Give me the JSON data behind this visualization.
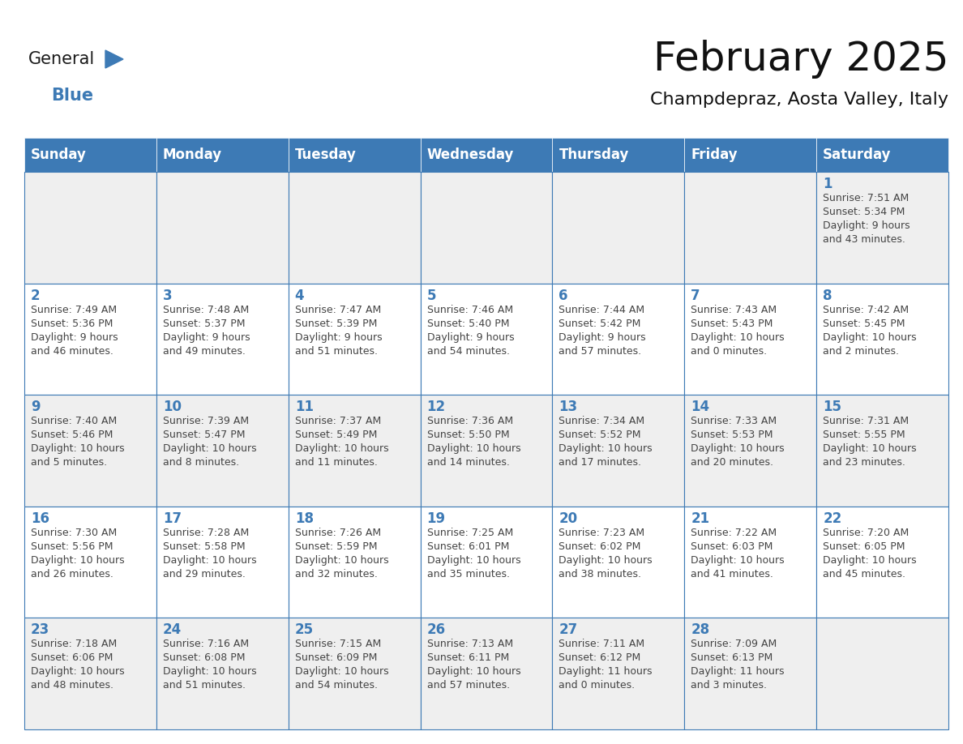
{
  "title": "February 2025",
  "subtitle": "Champdepraz, Aosta Valley, Italy",
  "header_color": "#3d7ab5",
  "header_text_color": "#ffffff",
  "grid_line_color": "#3d7ab5",
  "day_names": [
    "Sunday",
    "Monday",
    "Tuesday",
    "Wednesday",
    "Thursday",
    "Friday",
    "Saturday"
  ],
  "bg_color": "#ffffff",
  "cell_bg_even": "#efefef",
  "cell_bg_odd": "#ffffff",
  "day_num_color": "#3d7ab5",
  "text_color": "#444444",
  "logo_general_color": "#1a1a1a",
  "logo_blue_color": "#3d7ab5",
  "weeks": [
    [
      {
        "day": null,
        "sunrise": null,
        "sunset": null,
        "daylight": null
      },
      {
        "day": null,
        "sunrise": null,
        "sunset": null,
        "daylight": null
      },
      {
        "day": null,
        "sunrise": null,
        "sunset": null,
        "daylight": null
      },
      {
        "day": null,
        "sunrise": null,
        "sunset": null,
        "daylight": null
      },
      {
        "day": null,
        "sunrise": null,
        "sunset": null,
        "daylight": null
      },
      {
        "day": null,
        "sunrise": null,
        "sunset": null,
        "daylight": null
      },
      {
        "day": 1,
        "sunrise": "7:51 AM",
        "sunset": "5:34 PM",
        "daylight": "9 hours\nand 43 minutes."
      }
    ],
    [
      {
        "day": 2,
        "sunrise": "7:49 AM",
        "sunset": "5:36 PM",
        "daylight": "9 hours\nand 46 minutes."
      },
      {
        "day": 3,
        "sunrise": "7:48 AM",
        "sunset": "5:37 PM",
        "daylight": "9 hours\nand 49 minutes."
      },
      {
        "day": 4,
        "sunrise": "7:47 AM",
        "sunset": "5:39 PM",
        "daylight": "9 hours\nand 51 minutes."
      },
      {
        "day": 5,
        "sunrise": "7:46 AM",
        "sunset": "5:40 PM",
        "daylight": "9 hours\nand 54 minutes."
      },
      {
        "day": 6,
        "sunrise": "7:44 AM",
        "sunset": "5:42 PM",
        "daylight": "9 hours\nand 57 minutes."
      },
      {
        "day": 7,
        "sunrise": "7:43 AM",
        "sunset": "5:43 PM",
        "daylight": "10 hours\nand 0 minutes."
      },
      {
        "day": 8,
        "sunrise": "7:42 AM",
        "sunset": "5:45 PM",
        "daylight": "10 hours\nand 2 minutes."
      }
    ],
    [
      {
        "day": 9,
        "sunrise": "7:40 AM",
        "sunset": "5:46 PM",
        "daylight": "10 hours\nand 5 minutes."
      },
      {
        "day": 10,
        "sunrise": "7:39 AM",
        "sunset": "5:47 PM",
        "daylight": "10 hours\nand 8 minutes."
      },
      {
        "day": 11,
        "sunrise": "7:37 AM",
        "sunset": "5:49 PM",
        "daylight": "10 hours\nand 11 minutes."
      },
      {
        "day": 12,
        "sunrise": "7:36 AM",
        "sunset": "5:50 PM",
        "daylight": "10 hours\nand 14 minutes."
      },
      {
        "day": 13,
        "sunrise": "7:34 AM",
        "sunset": "5:52 PM",
        "daylight": "10 hours\nand 17 minutes."
      },
      {
        "day": 14,
        "sunrise": "7:33 AM",
        "sunset": "5:53 PM",
        "daylight": "10 hours\nand 20 minutes."
      },
      {
        "day": 15,
        "sunrise": "7:31 AM",
        "sunset": "5:55 PM",
        "daylight": "10 hours\nand 23 minutes."
      }
    ],
    [
      {
        "day": 16,
        "sunrise": "7:30 AM",
        "sunset": "5:56 PM",
        "daylight": "10 hours\nand 26 minutes."
      },
      {
        "day": 17,
        "sunrise": "7:28 AM",
        "sunset": "5:58 PM",
        "daylight": "10 hours\nand 29 minutes."
      },
      {
        "day": 18,
        "sunrise": "7:26 AM",
        "sunset": "5:59 PM",
        "daylight": "10 hours\nand 32 minutes."
      },
      {
        "day": 19,
        "sunrise": "7:25 AM",
        "sunset": "6:01 PM",
        "daylight": "10 hours\nand 35 minutes."
      },
      {
        "day": 20,
        "sunrise": "7:23 AM",
        "sunset": "6:02 PM",
        "daylight": "10 hours\nand 38 minutes."
      },
      {
        "day": 21,
        "sunrise": "7:22 AM",
        "sunset": "6:03 PM",
        "daylight": "10 hours\nand 41 minutes."
      },
      {
        "day": 22,
        "sunrise": "7:20 AM",
        "sunset": "6:05 PM",
        "daylight": "10 hours\nand 45 minutes."
      }
    ],
    [
      {
        "day": 23,
        "sunrise": "7:18 AM",
        "sunset": "6:06 PM",
        "daylight": "10 hours\nand 48 minutes."
      },
      {
        "day": 24,
        "sunrise": "7:16 AM",
        "sunset": "6:08 PM",
        "daylight": "10 hours\nand 51 minutes."
      },
      {
        "day": 25,
        "sunrise": "7:15 AM",
        "sunset": "6:09 PM",
        "daylight": "10 hours\nand 54 minutes."
      },
      {
        "day": 26,
        "sunrise": "7:13 AM",
        "sunset": "6:11 PM",
        "daylight": "10 hours\nand 57 minutes."
      },
      {
        "day": 27,
        "sunrise": "7:11 AM",
        "sunset": "6:12 PM",
        "daylight": "11 hours\nand 0 minutes."
      },
      {
        "day": 28,
        "sunrise": "7:09 AM",
        "sunset": "6:13 PM",
        "daylight": "11 hours\nand 3 minutes."
      },
      {
        "day": null,
        "sunrise": null,
        "sunset": null,
        "daylight": null
      }
    ]
  ]
}
